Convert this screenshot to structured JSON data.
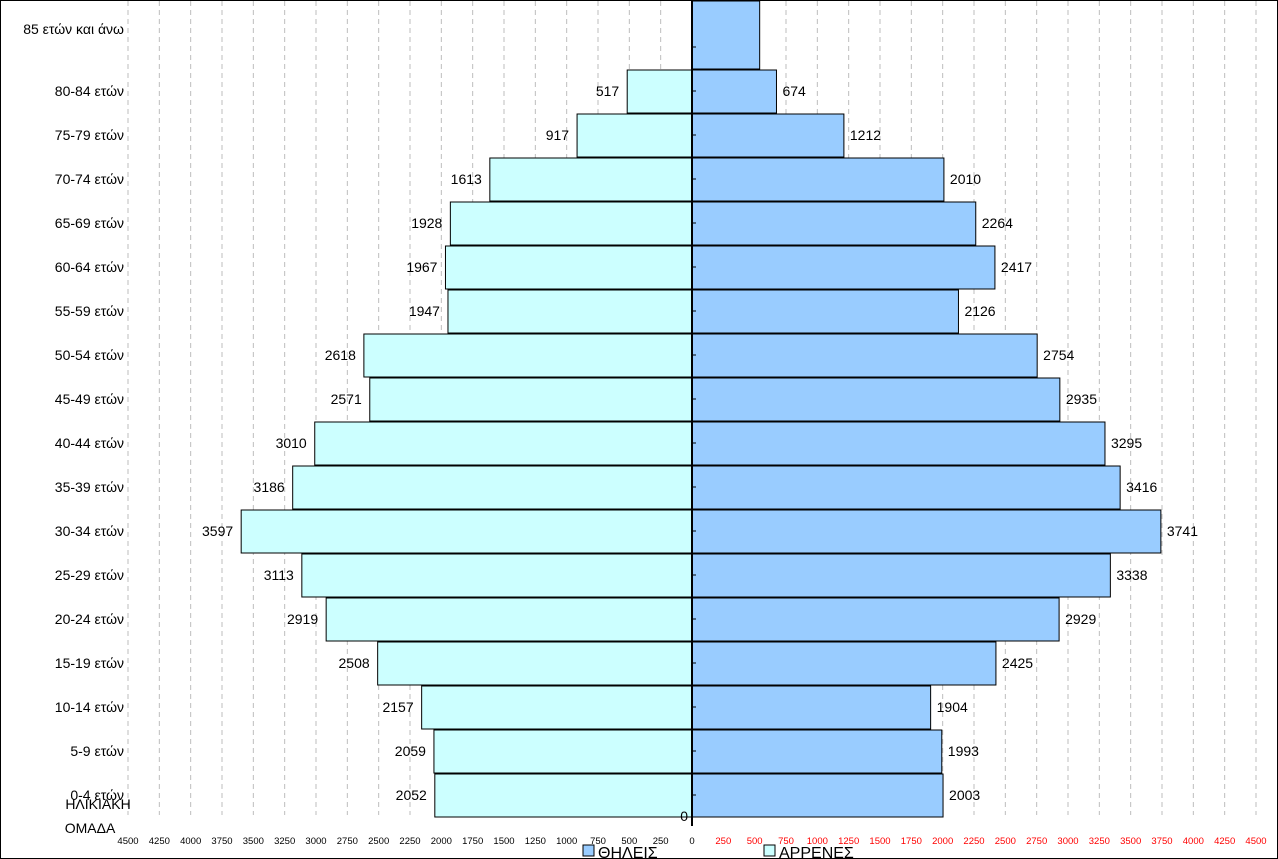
{
  "chart_data": {
    "type": "bar",
    "orientation": "horizontal",
    "categories": [
      "85 ετών και άνω",
      "80-84 ετών",
      "75-79 ετών",
      "70-74 ετών",
      "65-69 ετών",
      "60-64 ετών",
      "55-59 ετών",
      "50-54 ετών",
      "45-49 ετών",
      "40-44 ετών",
      "35-39 ετών",
      "30-34 ετών",
      "25-29 ετών",
      "20-24 ετών",
      "15-19 ετών",
      "10-14 ετών",
      "5-9 ετών",
      "0-4 ετών"
    ],
    "series": [
      {
        "name": "ΘΗΛΕΙΣ",
        "color": "#ccffff",
        "values": [
          null,
          517,
          917,
          1613,
          1928,
          1967,
          1947,
          2618,
          2571,
          3010,
          3186,
          3597,
          3113,
          2919,
          2508,
          2157,
          2059,
          2052
        ]
      },
      {
        "name": "ΑΡΡΕΝΕΣ",
        "color": "#99ccff",
        "values": [
          540,
          674,
          1212,
          2010,
          2264,
          2417,
          2126,
          2754,
          2935,
          3295,
          3416,
          3741,
          3338,
          2929,
          2425,
          1904,
          1993,
          2003
        ]
      }
    ],
    "ylabel": "ΗΛΙΚΙΑΚΗ ΟΜΑΔΑ",
    "ylabel_lines": [
      "ΗΛΙΚΙΑΚΗ",
      "ΟΜΑΔΑ"
    ],
    "zero_label": "0",
    "xlim": [
      -4500,
      4500
    ],
    "tick_step": 250,
    "grid": true,
    "legend": "bottom"
  }
}
